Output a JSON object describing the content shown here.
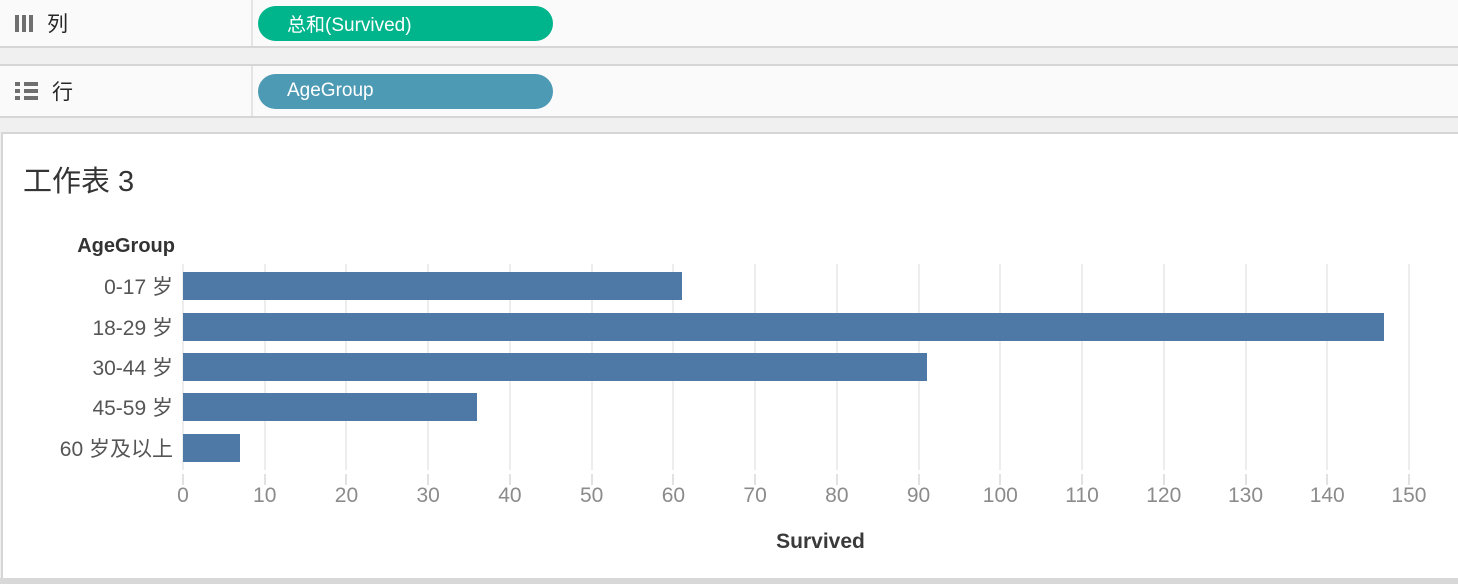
{
  "shelves": {
    "columns": {
      "label": "列",
      "pill": "总和(Survived)",
      "pill_color": "#00b48c"
    },
    "rows": {
      "label": "行",
      "pill": "AgeGroup",
      "pill_color": "#4d9ab5"
    }
  },
  "worksheet": {
    "title": "工作表 3"
  },
  "chart_data": {
    "type": "bar",
    "orientation": "horizontal",
    "title": "工作表 3",
    "row_field_label": "AgeGroup",
    "categories": [
      "0-17 岁",
      "18-29 岁",
      "30-44 岁",
      "45-59 岁",
      "60 岁及以上"
    ],
    "values": [
      61,
      147,
      91,
      36,
      7
    ],
    "xlabel": "Survived",
    "xticks": [
      0,
      10,
      20,
      30,
      40,
      50,
      60,
      70,
      80,
      90,
      100,
      110,
      120,
      130,
      140,
      150
    ],
    "xlim": [
      0,
      156
    ],
    "bar_color": "#4e79a7",
    "grid": true,
    "legend": "none"
  }
}
